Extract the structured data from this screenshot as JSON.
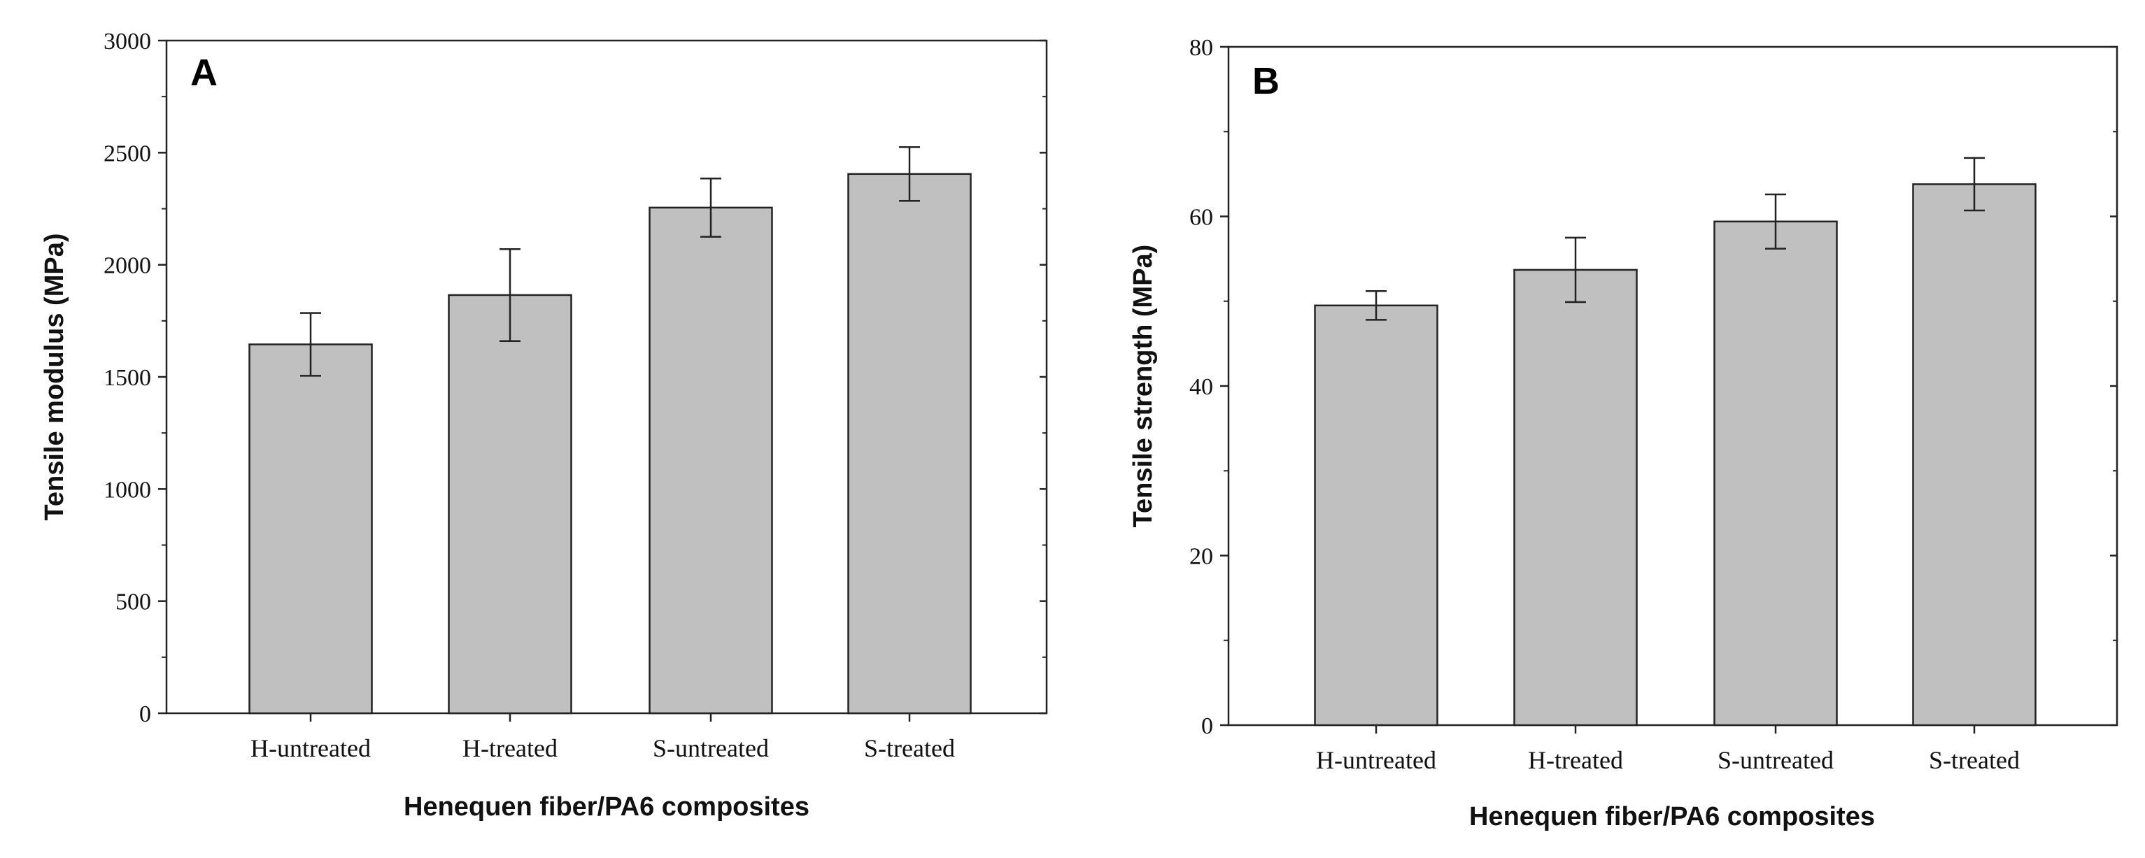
{
  "chart_data": [
    {
      "type": "bar",
      "panel_label": "A",
      "categories": [
        "H-untreated",
        "H-treated",
        "S-untreated",
        "S-treated"
      ],
      "values": [
        1645,
        1865,
        2255,
        2405
      ],
      "errors": [
        140,
        205,
        130,
        120
      ],
      "xlabel": "Henequen fiber/PA6 composites",
      "ylabel": "Tensile modulus (MPa)",
      "ylim": [
        0,
        3000
      ],
      "yticks": [
        "0",
        "500",
        "1000",
        "1500",
        "2000",
        "2500",
        "3000"
      ],
      "grid": false,
      "bar_color": "#c0c0c0"
    },
    {
      "type": "bar",
      "panel_label": "B",
      "categories": [
        "H-untreated",
        "H-treated",
        "S-untreated",
        "S-treated"
      ],
      "values": [
        49.5,
        53.7,
        59.4,
        63.8
      ],
      "errors": [
        1.7,
        3.8,
        3.2,
        3.1
      ],
      "xlabel": "Henequen fiber/PA6 composites",
      "ylabel": "Tensile strength (MPa)",
      "ylim": [
        0,
        80
      ],
      "yticks": [
        "0",
        "20",
        "40",
        "60",
        "80"
      ],
      "grid": false,
      "bar_color": "#c0c0c0"
    }
  ]
}
